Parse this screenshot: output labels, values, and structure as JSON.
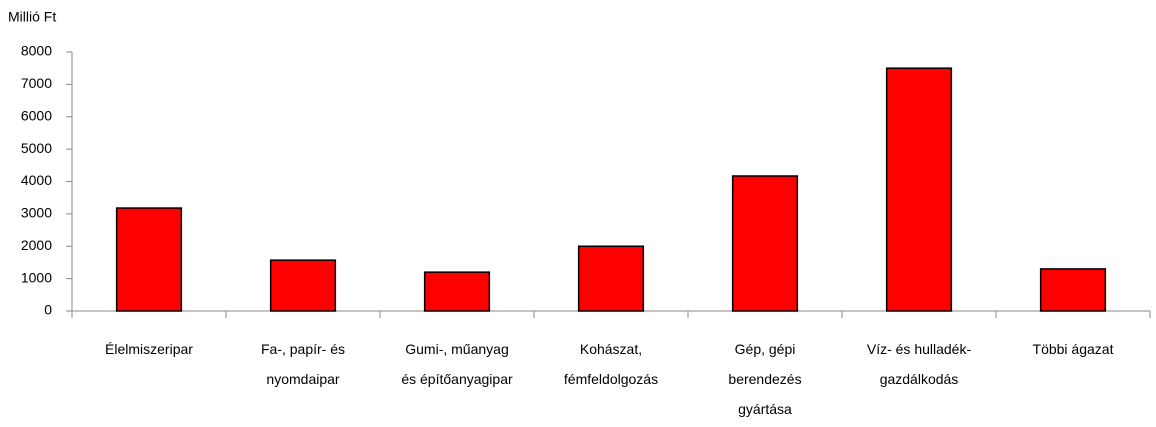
{
  "chart_data": {
    "type": "bar",
    "y_label": "Millió Ft",
    "categories": [
      "Élelmiszeripar",
      "Fa-, papír- és\nnyomdaipar",
      "Gumi-, műanyag\nés építőanyagipar",
      "Kohászat,\nfémfeldolgozás",
      "Gép, gépi\nberendezés\ngyártása",
      "Víz- és hulladék-\ngazdálkodás",
      "Többi ágazat"
    ],
    "values": [
      3180,
      1570,
      1200,
      2000,
      4170,
      7500,
      1300
    ],
    "color": "#ff0000",
    "ylim": [
      0,
      8000
    ],
    "yticks": [
      0,
      1000,
      2000,
      3000,
      4000,
      5000,
      6000,
      7000,
      8000
    ],
    "grid": false
  }
}
